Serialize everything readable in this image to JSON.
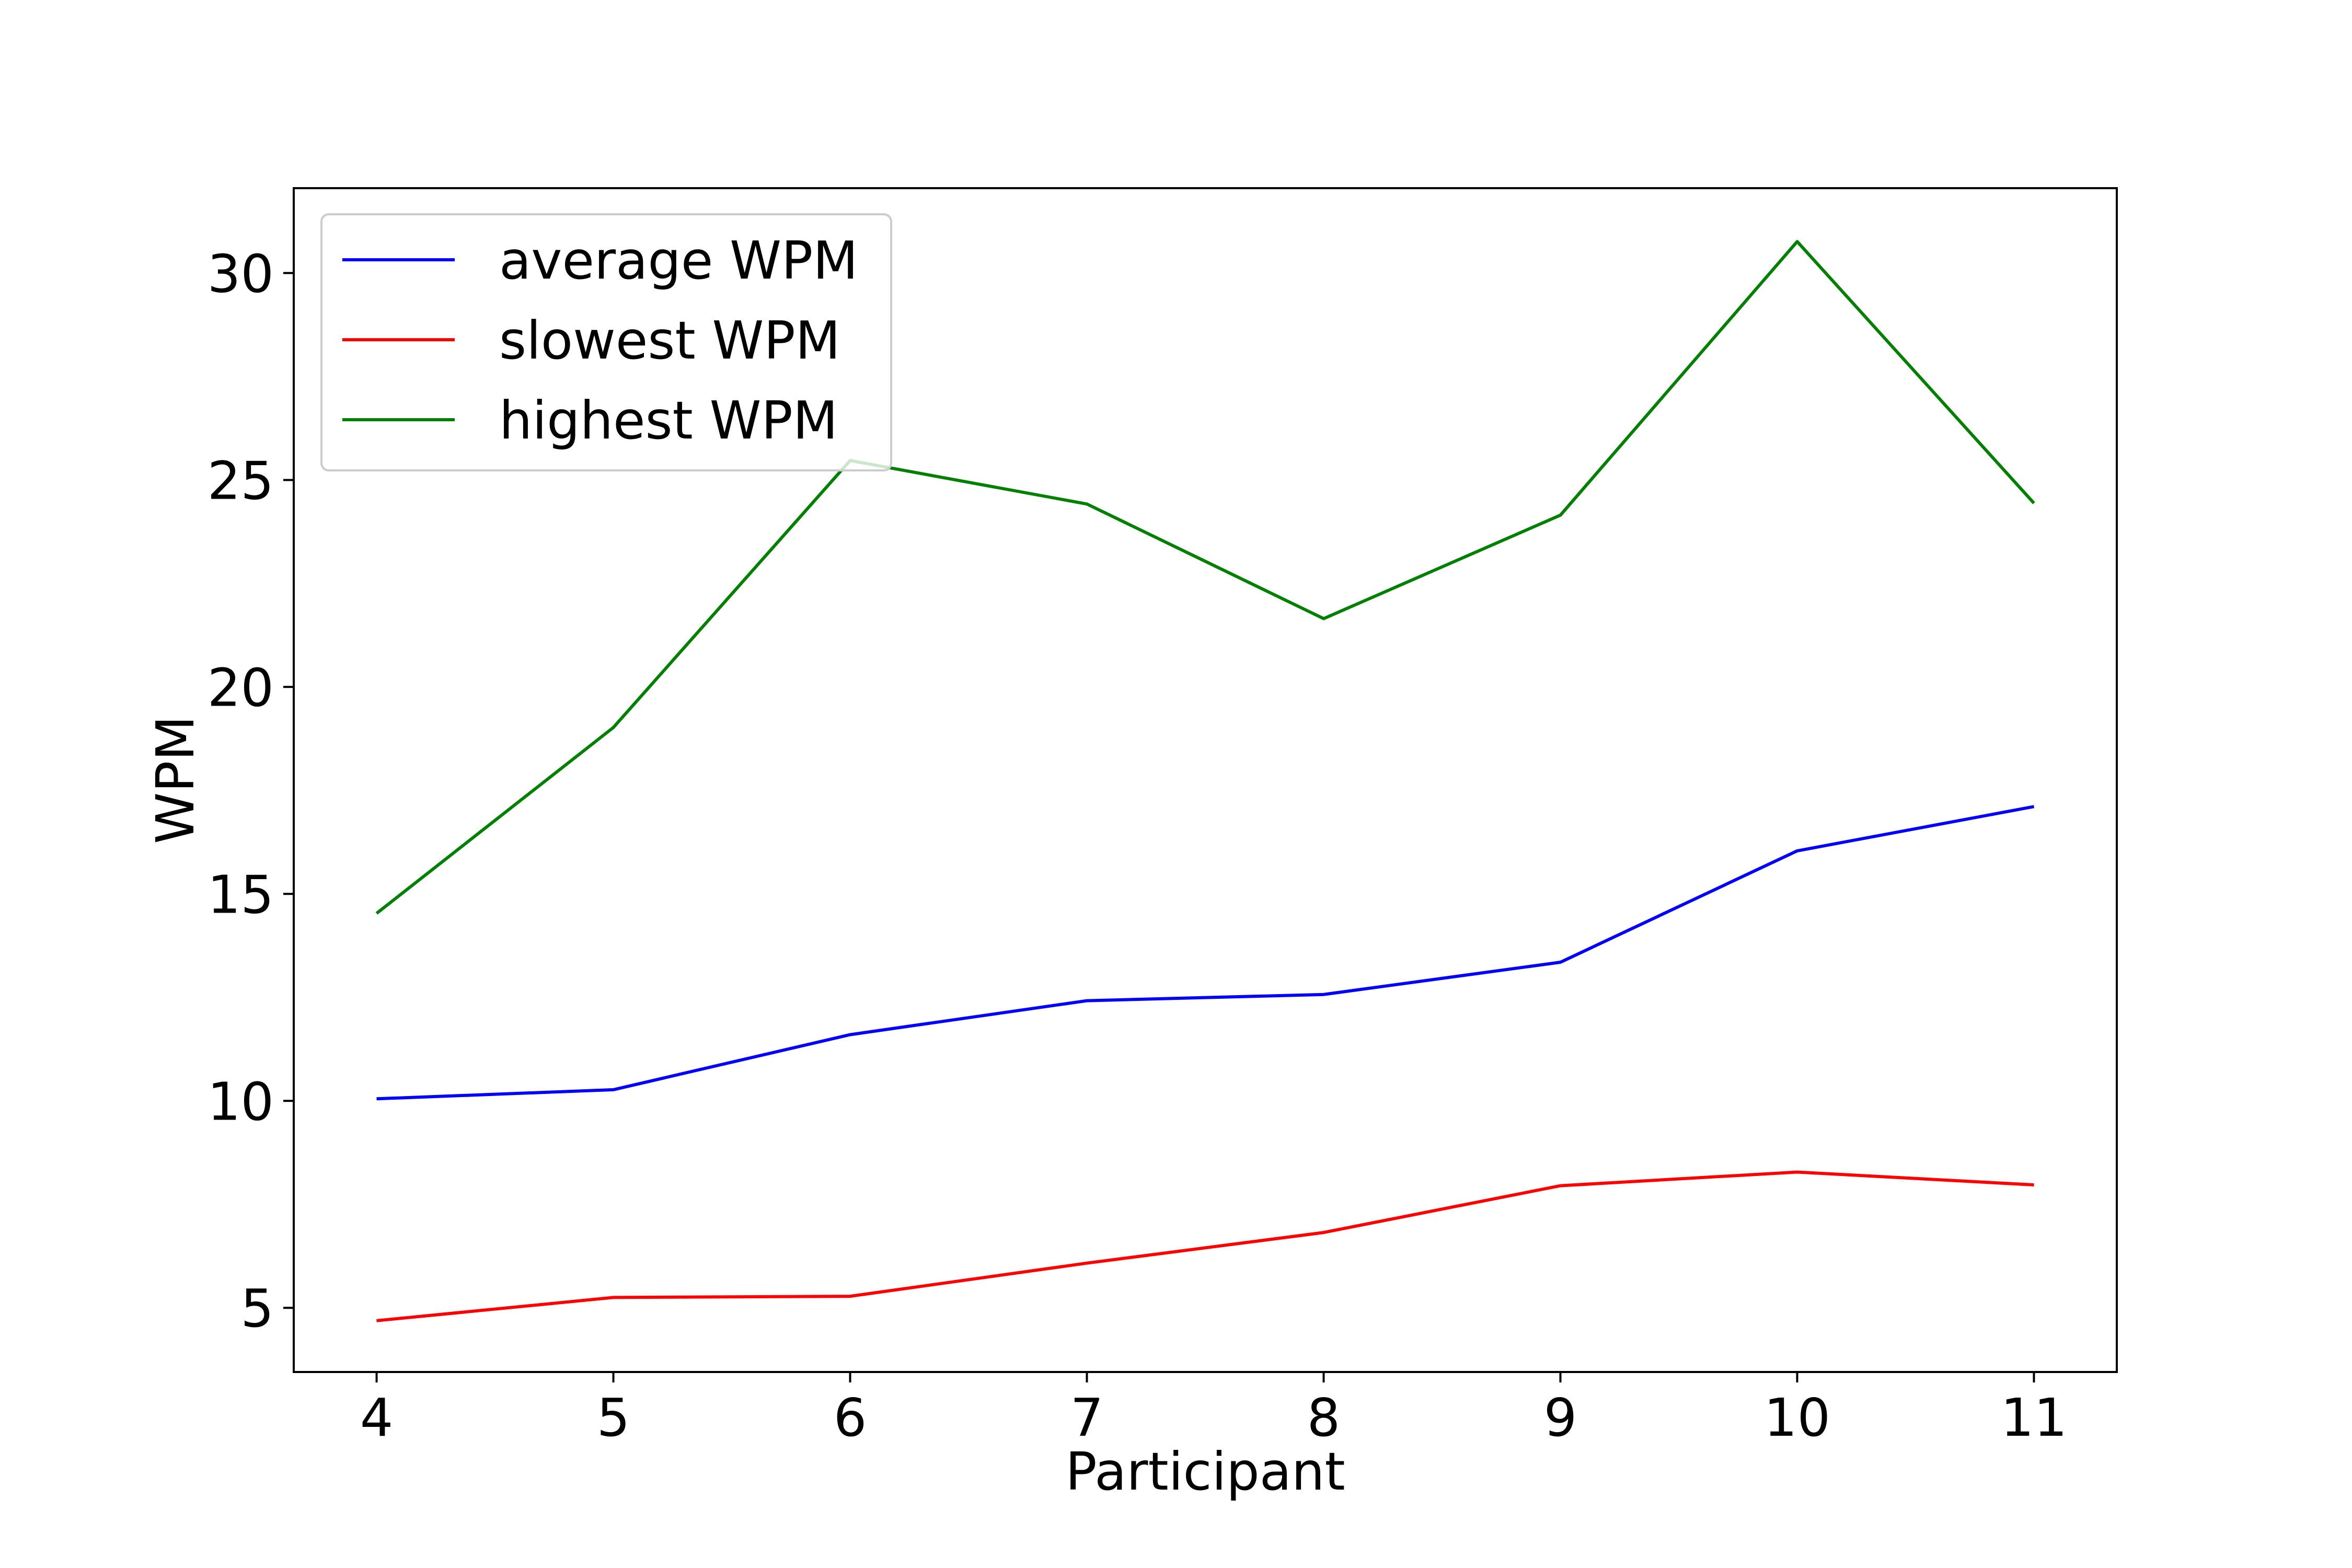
{
  "chart_data": {
    "type": "line",
    "title": "",
    "xlabel": "Participant",
    "ylabel": "WPM",
    "x": [
      4,
      5,
      6,
      7,
      8,
      9,
      10,
      11
    ],
    "xlim": [
      3.65,
      11.35
    ],
    "ylim": [
      3.45,
      32.05
    ],
    "xticks": [
      "4",
      "5",
      "6",
      "7",
      "8",
      "9",
      "10",
      "11"
    ],
    "yticks": [
      "5",
      "10",
      "15",
      "20",
      "25",
      "30"
    ],
    "grid": false,
    "legend_position": "upper left",
    "series": [
      {
        "name": "average WPM",
        "color": "#0000ff",
        "values": [
          10.05,
          10.27,
          11.6,
          12.42,
          12.57,
          13.35,
          16.04,
          17.11
        ]
      },
      {
        "name": "slowest WPM",
        "color": "#ff0000",
        "values": [
          4.69,
          5.25,
          5.28,
          6.08,
          6.82,
          7.95,
          8.28,
          7.97
        ]
      },
      {
        "name": "highest WPM",
        "color": "#008000",
        "values": [
          14.53,
          19.02,
          25.47,
          24.42,
          21.65,
          24.15,
          30.76,
          24.44
        ]
      }
    ]
  }
}
